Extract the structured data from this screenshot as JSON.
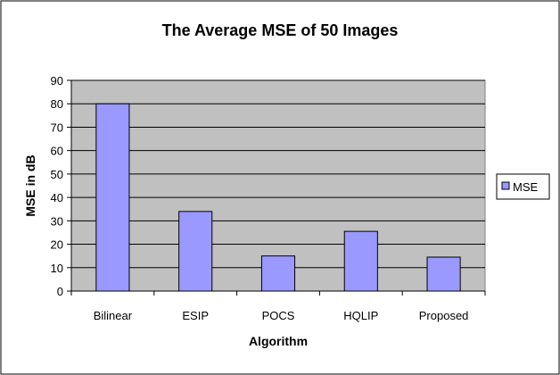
{
  "chart_data": {
    "type": "bar",
    "title": "The Average MSE of 50 Images",
    "xlabel": "Algorithm",
    "ylabel": "MSE  in  dB",
    "categories": [
      "Bilinear",
      "ESIP",
      "POCS",
      "HQLIP",
      "Proposed"
    ],
    "series": [
      {
        "name": "MSE",
        "values": [
          80,
          34,
          15,
          25.5,
          14.5
        ]
      }
    ],
    "ylim": [
      0,
      90
    ],
    "yticks": [
      "0",
      "10",
      "20",
      "30",
      "40",
      "50",
      "60",
      "70",
      "80",
      "90"
    ],
    "grid": true,
    "legend": "right",
    "colors": {
      "bar": "#9999ff",
      "plot_bg": "#c0c0c0",
      "chart_bg": "#ffffff",
      "grid": "#000000"
    }
  }
}
